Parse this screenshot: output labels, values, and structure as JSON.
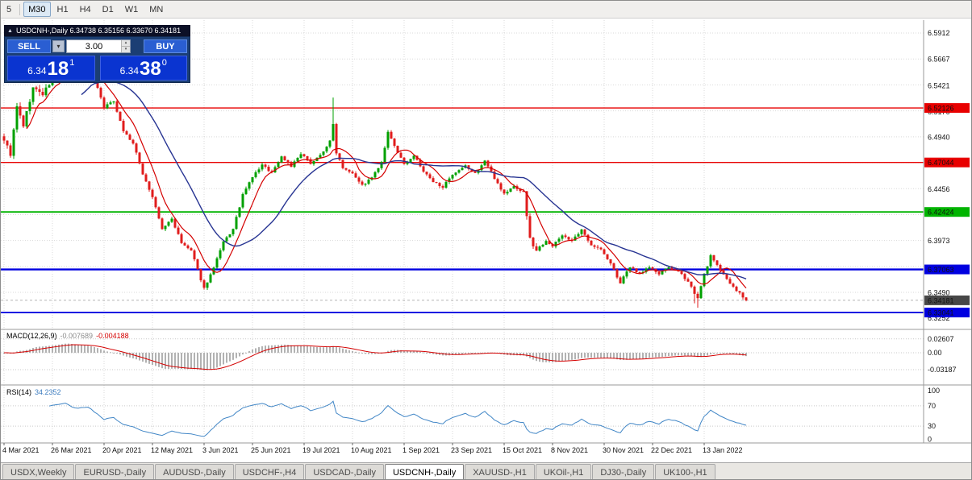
{
  "toolbar": {
    "buttons": [
      {
        "label": "5",
        "selected": false,
        "sep_after": true
      },
      {
        "label": "M30",
        "selected": true
      },
      {
        "label": "H1",
        "selected": false
      },
      {
        "label": "H4",
        "selected": false
      },
      {
        "label": "D1",
        "selected": false
      },
      {
        "label": "W1",
        "selected": false
      },
      {
        "label": "MN",
        "selected": false
      }
    ]
  },
  "chart_header": {
    "icon": "▲",
    "title_line": "USDCNH-,Daily 6.34738 6.35156 6.33670 6.34181"
  },
  "trade_panel": {
    "sell_label": "SELL",
    "buy_label": "BUY",
    "volume": "3.00",
    "bid": {
      "prefix": "6.34",
      "pips": "18",
      "point": "1"
    },
    "ask": {
      "prefix": "6.34",
      "pips": "38",
      "point": "0"
    }
  },
  "tabs": [
    {
      "label": "USDX,Weekly",
      "active": false
    },
    {
      "label": "EURUSD-,Daily",
      "active": false
    },
    {
      "label": "AUDUSD-,Daily",
      "active": false
    },
    {
      "label": "USDCHF-,H4",
      "active": false
    },
    {
      "label": "USDCAD-,Daily",
      "active": false
    },
    {
      "label": "USDCNH-,Daily",
      "active": true
    },
    {
      "label": "XAUUSD-,H1",
      "active": false
    },
    {
      "label": "UKOil-,H1",
      "active": false
    },
    {
      "label": "DJ30-,Daily",
      "active": false
    },
    {
      "label": "UK100-,H1",
      "active": false
    }
  ],
  "chart_data": {
    "type": "candlestick",
    "symbol": "USDCNH-",
    "timeframe": "Daily",
    "last": {
      "open": 6.34738,
      "high": 6.35156,
      "low": 6.3367,
      "close": 6.34181
    },
    "bars": 231,
    "close_waypoints": [
      [
        0,
        6.492
      ],
      [
        2,
        6.478
      ],
      [
        4,
        6.522
      ],
      [
        6,
        6.505
      ],
      [
        9,
        6.54
      ],
      [
        12,
        6.534
      ],
      [
        15,
        6.548
      ],
      [
        19,
        6.566
      ],
      [
        22,
        6.552
      ],
      [
        26,
        6.559
      ],
      [
        29,
        6.54
      ],
      [
        31,
        6.522
      ],
      [
        34,
        6.528
      ],
      [
        37,
        6.5
      ],
      [
        40,
        6.488
      ],
      [
        43,
        6.46
      ],
      [
        46,
        6.438
      ],
      [
        49,
        6.408
      ],
      [
        52,
        6.418
      ],
      [
        55,
        6.395
      ],
      [
        58,
        6.388
      ],
      [
        60,
        6.37
      ],
      [
        62,
        6.353
      ],
      [
        65,
        6.372
      ],
      [
        68,
        6.396
      ],
      [
        71,
        6.408
      ],
      [
        74,
        6.44
      ],
      [
        77,
        6.457
      ],
      [
        80,
        6.468
      ],
      [
        83,
        6.461
      ],
      [
        86,
        6.476
      ],
      [
        89,
        6.467
      ],
      [
        92,
        6.478
      ],
      [
        95,
        6.47
      ],
      [
        98,
        6.477
      ],
      [
        101,
        6.49
      ],
      [
        102,
        6.506
      ],
      [
        103,
        6.48
      ],
      [
        105,
        6.466
      ],
      [
        108,
        6.461
      ],
      [
        111,
        6.449
      ],
      [
        114,
        6.456
      ],
      [
        117,
        6.47
      ],
      [
        119,
        6.498
      ],
      [
        121,
        6.486
      ],
      [
        124,
        6.468
      ],
      [
        127,
        6.477
      ],
      [
        130,
        6.462
      ],
      [
        133,
        6.452
      ],
      [
        136,
        6.448
      ],
      [
        139,
        6.458
      ],
      [
        143,
        6.467
      ],
      [
        146,
        6.46
      ],
      [
        149,
        6.472
      ],
      [
        152,
        6.456
      ],
      [
        155,
        6.441
      ],
      [
        158,
        6.448
      ],
      [
        161,
        6.443
      ],
      [
        163,
        6.399
      ],
      [
        165,
        6.388
      ],
      [
        168,
        6.398
      ],
      [
        170,
        6.392
      ],
      [
        173,
        6.403
      ],
      [
        176,
        6.397
      ],
      [
        179,
        6.407
      ],
      [
        182,
        6.394
      ],
      [
        185,
        6.389
      ],
      [
        188,
        6.376
      ],
      [
        191,
        6.358
      ],
      [
        194,
        6.373
      ],
      [
        197,
        6.367
      ],
      [
        200,
        6.373
      ],
      [
        203,
        6.366
      ],
      [
        206,
        6.373
      ],
      [
        209,
        6.368
      ],
      [
        212,
        6.36
      ],
      [
        215,
        6.343
      ],
      [
        217,
        6.366
      ],
      [
        219,
        6.383
      ],
      [
        221,
        6.374
      ],
      [
        223,
        6.367
      ],
      [
        225,
        6.357
      ],
      [
        227,
        6.351
      ],
      [
        230,
        6.3418
      ]
    ],
    "price_axis": {
      "ticks": [
        "6.5912",
        "6.5667",
        "6.5421",
        "6.5176",
        "6.4940",
        "6.4456",
        "6.3973",
        "6.3490",
        "6.3252"
      ],
      "range": {
        "top": 6.5912,
        "bottom": 6.3252
      },
      "grid_step": 0.0242
    },
    "levels": [
      {
        "price": 6.52126,
        "label": "6.52126",
        "color": "#e80000",
        "width": 1.3
      },
      {
        "price": 6.47044,
        "label": "6.47044",
        "color": "#e80000",
        "width": 1.3
      },
      {
        "price": 6.42424,
        "label": "6.42424",
        "color": "#00b400",
        "width": 1.8
      },
      {
        "price": 6.37063,
        "label": "6.37063",
        "color": "#0000e0",
        "width": 2.4
      },
      {
        "price": 6.33041,
        "label": "6.33041",
        "color": "#0000e0",
        "width": 1.8
      }
    ],
    "current_price": {
      "value": 6.34181,
      "label": "6.34181",
      "color": "#474747"
    },
    "time_axis": [
      {
        "label": "4 Mar 2021",
        "bar": 0
      },
      {
        "label": "26 Mar 2021",
        "bar": 15
      },
      {
        "label": "20 Apr 2021",
        "bar": 31
      },
      {
        "label": "12 May 2021",
        "bar": 46
      },
      {
        "label": "3 Jun 2021",
        "bar": 62
      },
      {
        "label": "25 Jun 2021",
        "bar": 77
      },
      {
        "label": "19 Jul 2021",
        "bar": 93
      },
      {
        "label": "10 Aug 2021",
        "bar": 108
      },
      {
        "label": "1 Sep 2021",
        "bar": 124
      },
      {
        "label": "23 Sep 2021",
        "bar": 139
      },
      {
        "label": "15 Oct 2021",
        "bar": 155
      },
      {
        "label": "8 Nov 2021",
        "bar": 170
      },
      {
        "label": "30 Nov 2021",
        "bar": 186
      },
      {
        "label": "22 Dec 2021",
        "bar": 201
      },
      {
        "label": "13 Jan 2022",
        "bar": 217
      }
    ],
    "indicators": {
      "macd": {
        "name": "MACD(12,26,9)",
        "value_main": "-0.007689",
        "value_signal": "-0.004188",
        "fast": 12,
        "slow": 26,
        "signal": 9,
        "ticks": [
          {
            "label": "0.02607",
            "value": 0.02607
          },
          {
            "label": "0.00",
            "value": 0
          },
          {
            "label": "-0.03187",
            "value": -0.03187
          }
        ]
      },
      "rsi": {
        "name": "RSI(14)",
        "value": "34.2352",
        "period": 14,
        "ticks": [
          {
            "label": "100",
            "value": 100
          },
          {
            "label": "70",
            "value": 70
          },
          {
            "label": "30",
            "value": 30
          },
          {
            "label": "0",
            "value": 0
          }
        ],
        "levels": [
          70,
          30
        ]
      }
    },
    "colors": {
      "up": "#00a000",
      "down": "#e01c1c",
      "ma_fast": "#d40000",
      "ma_slow": "#283593",
      "macd_hist": "#b2b2b2",
      "macd_signal": "#d40000",
      "rsi_line": "#4186c6",
      "grid": "#d9d9d9"
    }
  }
}
